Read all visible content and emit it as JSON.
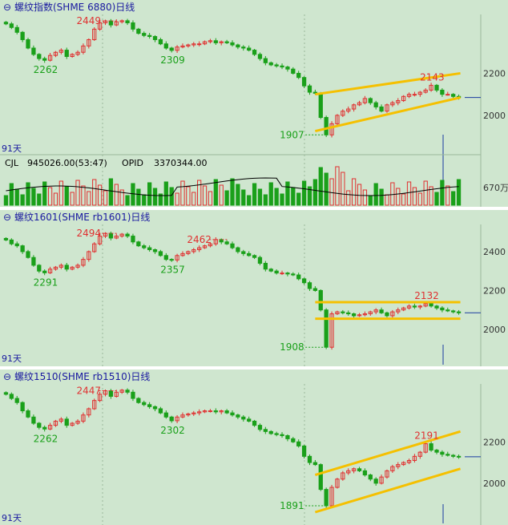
{
  "panels": [
    {
      "title": "螺纹指数(SHME 6880)日线",
      "days": "91天",
      "axis_labels": [
        "2200",
        "2000"
      ],
      "sub_title_cjl": "CJL",
      "sub_cjl_value": "945026.00(53:47)",
      "sub_opid_label": "OPID",
      "sub_opid_value": "3370344.00",
      "sub_axis_label": "670万",
      "annotations": {
        "high1": "2449",
        "low1": "2262",
        "low2": "2309",
        "high2": "2143",
        "low3": "1907"
      }
    },
    {
      "title": "螺纹1601(SHME rb1601)日线",
      "days": "91天",
      "axis_labels": [
        "2400",
        "2200",
        "2000"
      ],
      "annotations": {
        "high1": "2494",
        "high3": "2462",
        "low1": "2291",
        "low2": "2357",
        "high2": "2132",
        "low3": "1908"
      }
    },
    {
      "title": "螺纹1510(SHME rb1510)日线",
      "days": "91天",
      "axis_labels": [
        "2200",
        "2000"
      ],
      "annotations": {
        "high1": "2447",
        "low1": "2262",
        "low2": "2302",
        "high2": "2191",
        "low3": "1891"
      }
    }
  ],
  "colors": {
    "up": "#e03030",
    "down": "#1aa01a",
    "channel": "#f5c000",
    "title": "#1a1aa0",
    "bg": "#cfe6cf"
  },
  "chart_data": [
    {
      "type": "candlestick",
      "title": "螺纹指数(SHME 6880)日线",
      "ylim": [
        1870,
        2480
      ],
      "closes": [
        2435,
        2418,
        2395,
        2360,
        2320,
        2290,
        2270,
        2262,
        2285,
        2300,
        2310,
        2280,
        2290,
        2300,
        2330,
        2360,
        2410,
        2440,
        2449,
        2430,
        2445,
        2450,
        2440,
        2410,
        2390,
        2380,
        2375,
        2360,
        2340,
        2320,
        2309,
        2325,
        2330,
        2335,
        2340,
        2340,
        2350,
        2355,
        2345,
        2350,
        2345,
        2335,
        2325,
        2320,
        2310,
        2290,
        2270,
        2250,
        2240,
        2235,
        2230,
        2220,
        2200,
        2180,
        2140,
        2110,
        2105,
        1990,
        1907,
        1960,
        2000,
        2020,
        2030,
        2050,
        2060,
        2080,
        2060,
        2040,
        2020,
        2050,
        2060,
        2070,
        2090,
        2100,
        2100,
        2110,
        2120,
        2143,
        2120,
        2100,
        2100,
        2090,
        2085
      ],
      "annotations": [
        {
          "label": "2449",
          "type": "high",
          "index": 18
        },
        {
          "label": "2262",
          "type": "low",
          "index": 7
        },
        {
          "label": "2309",
          "type": "low",
          "index": 30
        },
        {
          "label": "2143",
          "type": "high",
          "index": 77
        },
        {
          "label": "1907",
          "type": "low",
          "index": 58
        }
      ],
      "channel": {
        "upper": [
          [
            56,
            2100
          ],
          [
            82,
            2200
          ]
        ],
        "lower": [
          [
            56,
            1925
          ],
          [
            82,
            2085
          ]
        ]
      }
    },
    {
      "type": "candlestick",
      "title": "螺纹1601(SHME rb1601)日线",
      "ylim": [
        1880,
        2540
      ],
      "closes": [
        2460,
        2440,
        2430,
        2400,
        2370,
        2330,
        2300,
        2291,
        2310,
        2320,
        2330,
        2310,
        2320,
        2330,
        2360,
        2400,
        2440,
        2480,
        2494,
        2470,
        2480,
        2490,
        2480,
        2450,
        2430,
        2420,
        2410,
        2400,
        2380,
        2360,
        2357,
        2380,
        2390,
        2400,
        2410,
        2420,
        2430,
        2440,
        2462,
        2450,
        2440,
        2420,
        2400,
        2390,
        2380,
        2370,
        2340,
        2310,
        2300,
        2290,
        2290,
        2285,
        2280,
        2260,
        2240,
        2210,
        2200,
        2100,
        1908,
        2080,
        2090,
        2085,
        2080,
        2070,
        2075,
        2080,
        2090,
        2100,
        2085,
        2070,
        2090,
        2100,
        2110,
        2120,
        2115,
        2120,
        2132,
        2120,
        2110,
        2100,
        2095,
        2090,
        2085
      ],
      "annotations": [
        {
          "label": "2494",
          "type": "high",
          "index": 18
        },
        {
          "label": "2462",
          "type": "high",
          "index": 38
        },
        {
          "label": "2291",
          "type": "low",
          "index": 7
        },
        {
          "label": "2357",
          "type": "low",
          "index": 30
        },
        {
          "label": "2132",
          "type": "high",
          "index": 76
        },
        {
          "label": "1908",
          "type": "low",
          "index": 58
        }
      ],
      "channel": {
        "upper": [
          [
            56,
            2140
          ],
          [
            82,
            2140
          ]
        ],
        "lower": [
          [
            56,
            2055
          ],
          [
            82,
            2055
          ]
        ]
      }
    },
    {
      "type": "candlestick",
      "title": "螺纹1510(SHME rb1510)日线",
      "ylim": [
        1860,
        2480
      ],
      "closes": [
        2430,
        2410,
        2390,
        2350,
        2320,
        2290,
        2270,
        2262,
        2280,
        2300,
        2310,
        2280,
        2290,
        2300,
        2330,
        2360,
        2400,
        2430,
        2447,
        2420,
        2440,
        2450,
        2440,
        2410,
        2390,
        2380,
        2370,
        2360,
        2340,
        2320,
        2302,
        2320,
        2330,
        2335,
        2340,
        2345,
        2350,
        2350,
        2345,
        2350,
        2340,
        2330,
        2320,
        2310,
        2300,
        2280,
        2260,
        2250,
        2240,
        2235,
        2230,
        2215,
        2200,
        2180,
        2130,
        2100,
        2090,
        1970,
        1891,
        1980,
        2020,
        2050,
        2060,
        2070,
        2060,
        2040,
        2020,
        2000,
        2030,
        2060,
        2080,
        2090,
        2100,
        2110,
        2130,
        2150,
        2191,
        2160,
        2150,
        2140,
        2135,
        2130,
        2128
      ],
      "annotations": [
        {
          "label": "2447",
          "type": "high",
          "index": 18
        },
        {
          "label": "2262",
          "type": "low",
          "index": 7
        },
        {
          "label": "2302",
          "type": "low",
          "index": 30
        },
        {
          "label": "2191",
          "type": "high",
          "index": 76
        },
        {
          "label": "1891",
          "type": "low",
          "index": 58
        }
      ],
      "channel": {
        "upper": [
          [
            56,
            2040
          ],
          [
            82,
            2250
          ]
        ],
        "lower": [
          [
            56,
            1860
          ],
          [
            82,
            2070
          ]
        ]
      }
    }
  ]
}
